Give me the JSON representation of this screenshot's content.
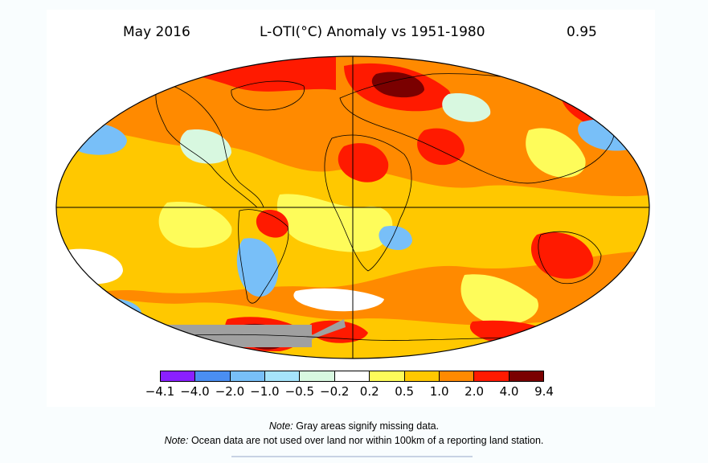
{
  "header": {
    "date": "May 2016",
    "title": "L-OTI(°C) Anomaly vs 1951-1980",
    "global_mean": "0.95"
  },
  "colors": {
    "missing": "#a0a0a0",
    "land_outline": "#000000",
    "background": "#ffffff"
  },
  "color_scale": {
    "colors": [
      "#8a20ff",
      "#4a8ef2",
      "#78bff8",
      "#a6e4fb",
      "#d8f8e0",
      "#ffffff",
      "#fefc5a",
      "#ffc800",
      "#ff8a00",
      "#ff1a00",
      "#7a0000"
    ],
    "labels": [
      "−4.1",
      "−4.0",
      "−2.0",
      "−1.0",
      "−0.5",
      "−0.2",
      "0.2",
      "0.5",
      "1.0",
      "2.0",
      "4.0",
      "9.4"
    ]
  },
  "notes": [
    {
      "label": "Note:",
      "text": " Gray areas signify missing data."
    },
    {
      "label": "Note:",
      "text": " Ocean data are not used over land nor within 100km of a reporting land station."
    }
  ]
}
